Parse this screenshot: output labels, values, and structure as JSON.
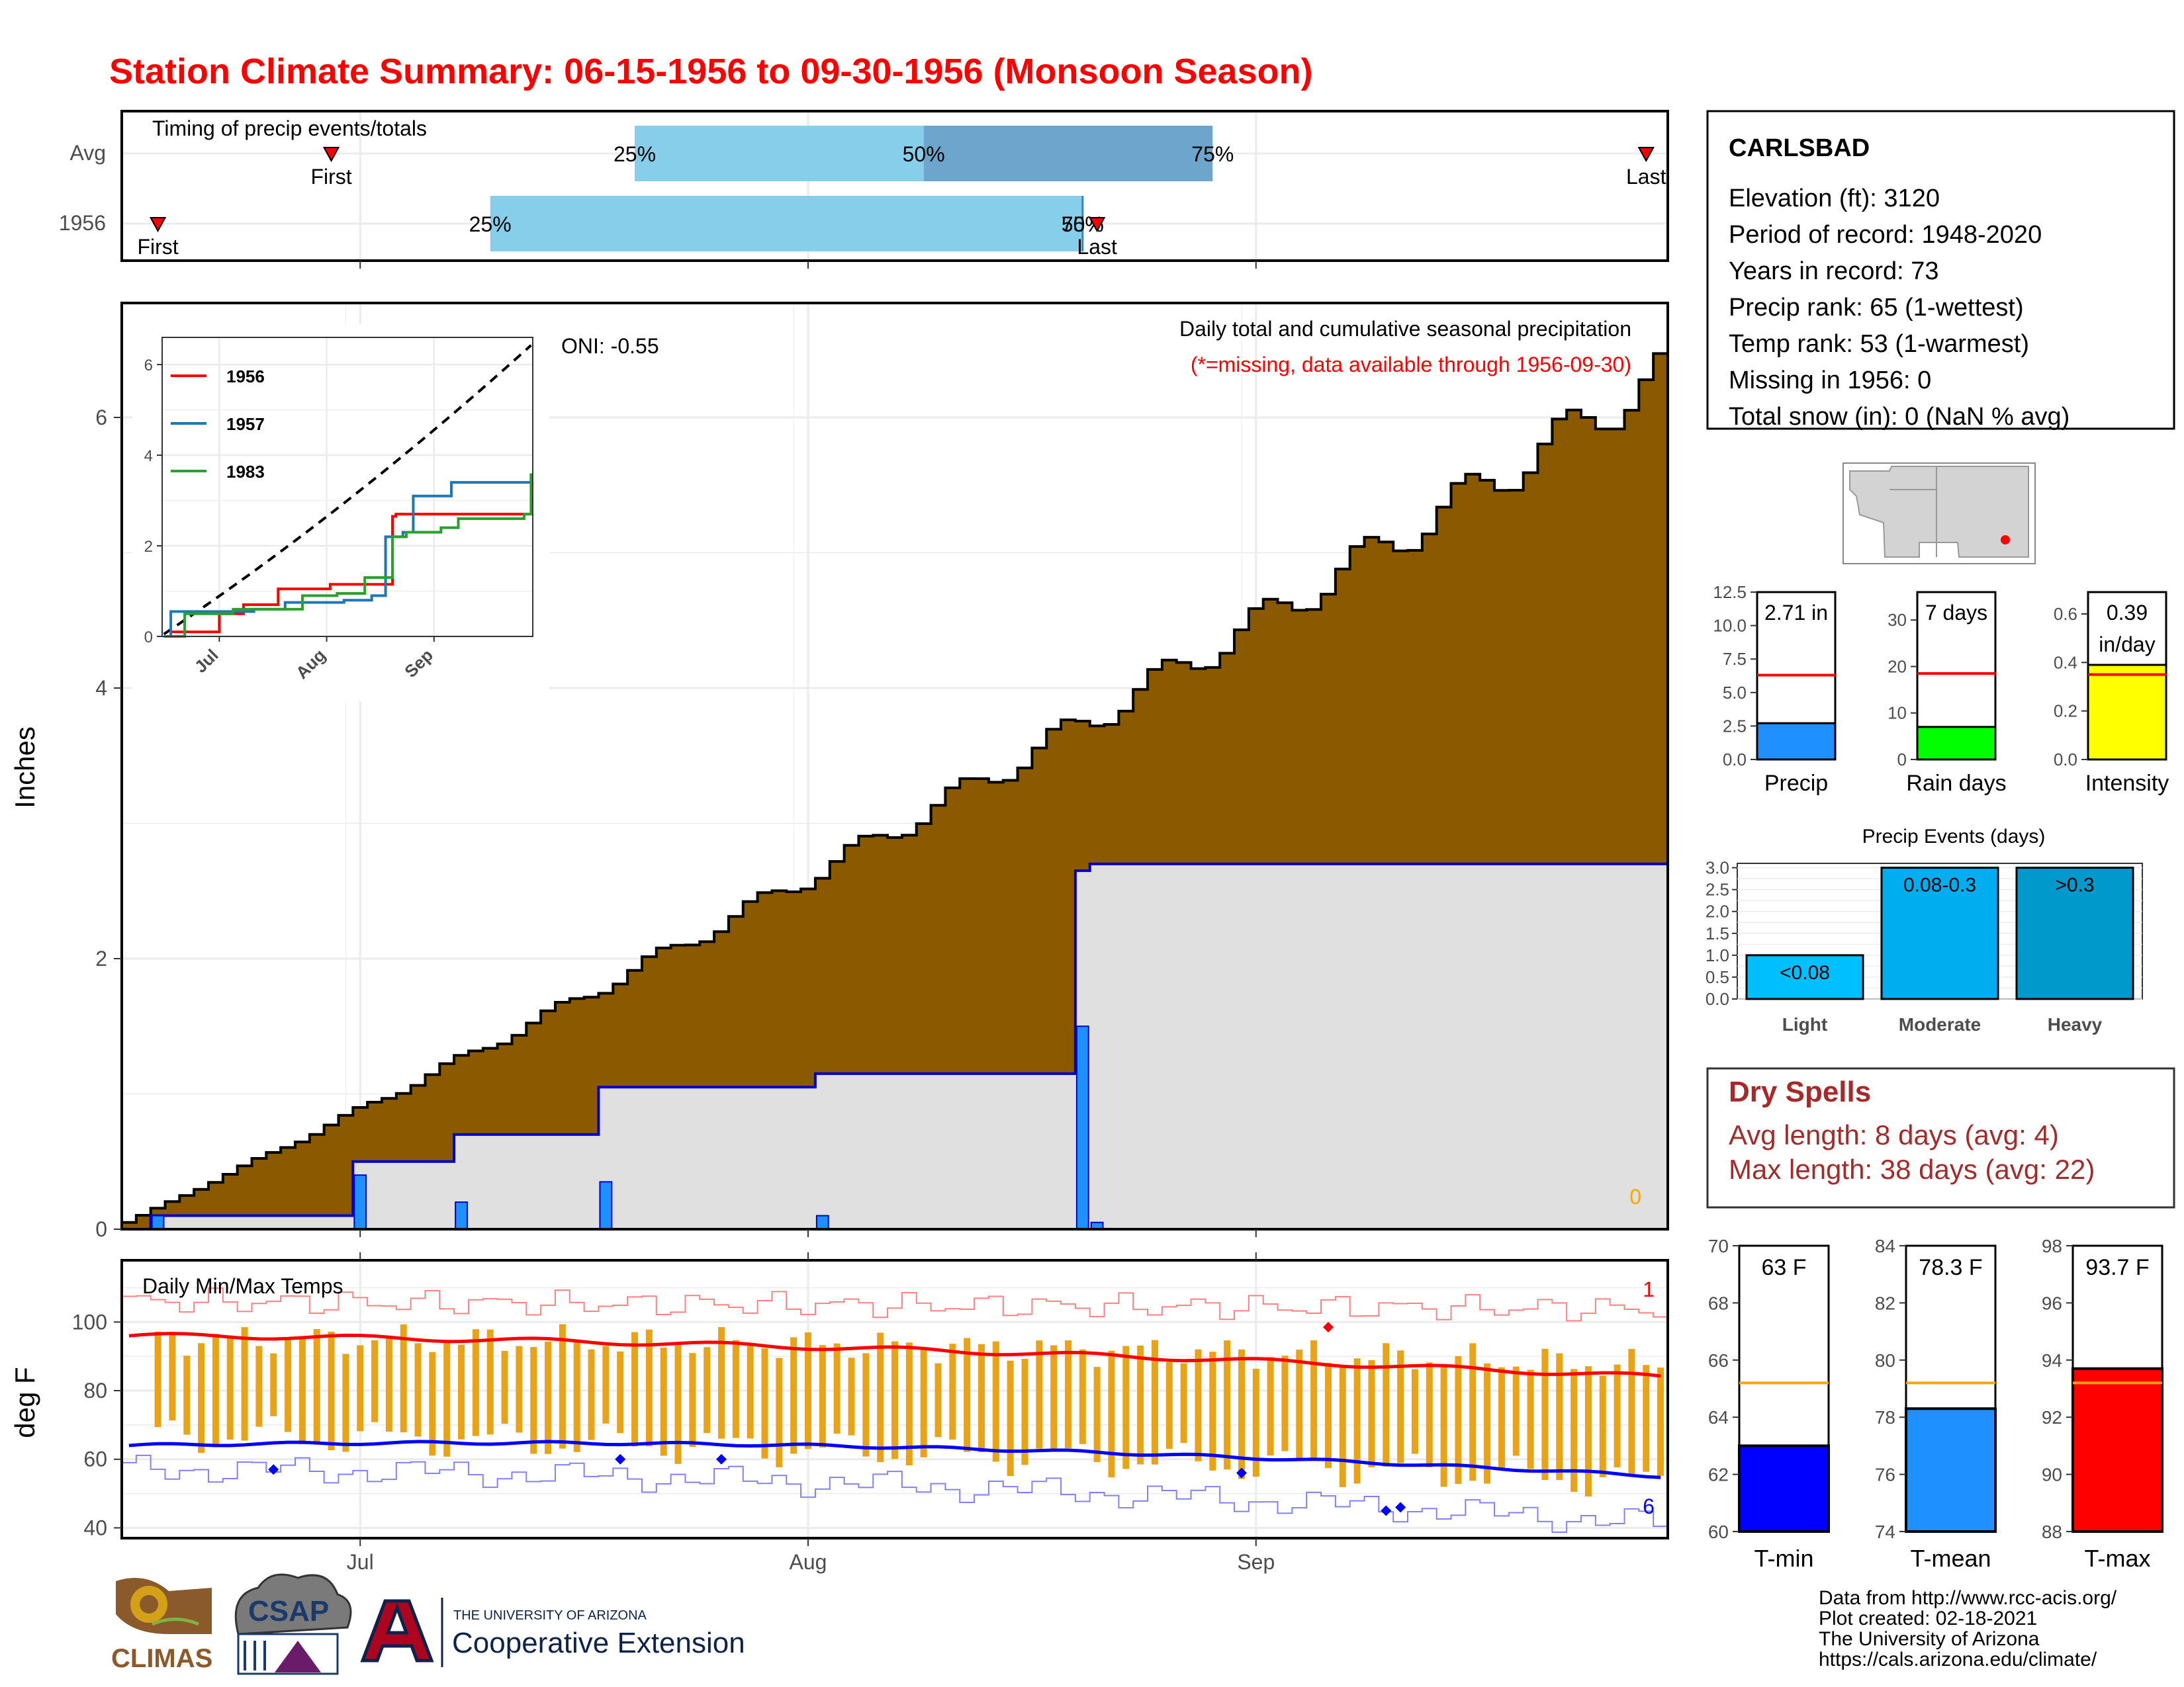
{
  "title": "Station Climate Summary: 06-15-1956 to 09-30-1956 (Monsoon Season)",
  "colors": {
    "title": "#ff0000",
    "precip_cum": "#8B5A00",
    "precip_bar": "#1E90FF",
    "precip_line": "#0000CC",
    "avg_light": "#87CEEB",
    "avg_dark": "#6CA6CD",
    "temp_bar": "#E8A317",
    "tmax_line": "#FF0000",
    "tmin_line": "#0000FF",
    "panel_border": "#000000",
    "grid": "#E6E6E6",
    "dry_spells": "#A52A2A",
    "orange": "#FFA500"
  },
  "timing_panel": {
    "title": "Timing of precip events/totals",
    "rows": [
      {
        "label": "Avg",
        "first": "First",
        "last": "Last",
        "first_date": "1956-06-29",
        "last_date": "1956-09-28",
        "q25_date": "1956-07-20",
        "q50_date": "1956-08-09",
        "q75_date": "1956-08-29",
        "q25": "25%",
        "q50": "50%",
        "q75": "75%"
      },
      {
        "label": "1956",
        "first": "First",
        "last": "Last",
        "first_date": "1956-06-17",
        "last_date": "1956-08-21",
        "q25_date": "1956-07-10",
        "q50_date": "1956-08-20",
        "q75_date": "1956-08-20",
        "q25": "25%",
        "q50": "50%",
        "q75": "75%"
      }
    ]
  },
  "precip_panel": {
    "ylabel": "Inches",
    "note1": "Daily total and cumulative seasonal precipitation",
    "note2": "(*=missing, data available through 1956-09-30)",
    "oni": "ONI: -0.55",
    "missing_count": "0",
    "x_ticks": [
      "Jul",
      "Aug",
      "Sep"
    ],
    "y_ticks": [
      "0",
      "2",
      "4",
      "6"
    ],
    "inset": {
      "series": [
        {
          "name": "1956",
          "color": "#ff0000"
        },
        {
          "name": "1957",
          "color": "#1f77b4"
        },
        {
          "name": "1983",
          "color": "#2ca02c"
        }
      ],
      "y_ticks": [
        "0",
        "2",
        "4",
        "6"
      ],
      "x_ticks": [
        "Jul",
        "Aug",
        "Sep"
      ]
    }
  },
  "temp_panel": {
    "title": "Daily Min/Max Temps",
    "ylabel": "deg F",
    "y_ticks": [
      "40",
      "60",
      "80",
      "100"
    ],
    "x_ticks": [
      "Jul",
      "Aug",
      "Sep"
    ],
    "record_high_count": "1",
    "record_low_count": "6"
  },
  "station": {
    "name": "CARLSBAD",
    "lines": [
      "Elevation (ft): 3120",
      "Period of record: 1948-2020",
      "Years in record: 73",
      "Precip rank: 65 (1-wettest)",
      "Temp rank: 53 (1-warmest)",
      "Missing in 1956: 0",
      "Total snow (in): 0 (NaN % avg)"
    ]
  },
  "summary_bars": [
    {
      "label": "Precip",
      "value_text": "2.71 in",
      "value": 2.71,
      "avg": 6.3,
      "ymax": 12.5,
      "ticks": [
        "0.0",
        "2.5",
        "5.0",
        "7.5",
        "10.0",
        "12.5"
      ],
      "color": "#1E90FF"
    },
    {
      "label": "Rain days",
      "value_text": "7 days",
      "value": 7,
      "avg": 18.5,
      "ymax": 36,
      "ticks": [
        "0",
        "10",
        "20",
        "30"
      ],
      "color": "#00FF00"
    },
    {
      "label": "Intensity",
      "value_text": "0.39",
      "value_text2": "in/day",
      "value": 0.39,
      "avg": 0.35,
      "ymax": 0.69,
      "ticks": [
        "0.0",
        "0.2",
        "0.4",
        "0.6"
      ],
      "color": "#FFFF00"
    }
  ],
  "precip_events": {
    "title": "Precip Events (days)",
    "ticks": [
      "0.0",
      "0.5",
      "1.0",
      "1.5",
      "2.0",
      "2.5",
      "3.0"
    ],
    "bars": [
      {
        "category": "Light",
        "label": "<0.08",
        "value": 1,
        "color": "#00BFFF"
      },
      {
        "category": "Moderate",
        "label": "0.08-0.3",
        "value": 3,
        "color": "#00AEEF"
      },
      {
        "category": "Heavy",
        "label": ">0.3",
        "value": 3,
        "color": "#0099CC"
      }
    ]
  },
  "dry_spells": {
    "title": "Dry Spells",
    "avg": "Avg length: 8 days (avg: 4)",
    "max": "Max length: 38 days (avg: 22)"
  },
  "temp_summary": [
    {
      "label": "T-min",
      "value_text": "63 F",
      "value": 63,
      "avg": 65.2,
      "ymin": 60,
      "ymax": 70,
      "ticks": [
        "60",
        "62",
        "64",
        "66",
        "68",
        "70"
      ],
      "color": "#0000FF"
    },
    {
      "label": "T-mean",
      "value_text": "78.3 F",
      "value": 78.3,
      "avg": 79.2,
      "ymin": 74,
      "ymax": 84,
      "ticks": [
        "74",
        "76",
        "78",
        "80",
        "82",
        "84"
      ],
      "color": "#1E90FF"
    },
    {
      "label": "T-max",
      "value_text": "93.7 F",
      "value": 93.7,
      "avg": 93.2,
      "ymin": 88,
      "ymax": 98,
      "ticks": [
        "88",
        "90",
        "92",
        "94",
        "96",
        "98"
      ],
      "color": "#FF0000"
    }
  ],
  "footer": {
    "lines": [
      "Data from http://www.rcc-acis.org/",
      "Plot created: 02-18-2021",
      "The University of Arizona",
      "https://cals.arizona.edu/climate/"
    ],
    "logo_climas": "CLIMAS",
    "logo_csap": "CSAP",
    "ua_small": "THE UNIVERSITY OF ARIZONA",
    "ua_big": "Cooperative Extension"
  },
  "chart_data": [
    {
      "type": "area",
      "title": "Daily total and cumulative seasonal precipitation",
      "ylabel": "Inches",
      "ylim": [
        0,
        6.9
      ],
      "x_range": [
        "1956-06-15",
        "1956-09-30"
      ],
      "avg_cumulative_final": 6.3,
      "year_cumulative_final": 2.71,
      "daily_precip": [
        {
          "date": "1956-06-17",
          "value": 0.1
        },
        {
          "date": "1956-07-01",
          "value": 0.4
        },
        {
          "date": "1956-07-08",
          "value": 0.2
        },
        {
          "date": "1956-07-18",
          "value": 0.35
        },
        {
          "date": "1956-08-02",
          "value": 0.1
        },
        {
          "date": "1956-08-20",
          "value": 1.5
        },
        {
          "date": "1956-08-21",
          "value": 0.05
        }
      ]
    },
    {
      "type": "line",
      "title": "Daily Min/Max Temps",
      "ylabel": "deg F",
      "ylim": [
        37,
        118
      ],
      "series": [
        {
          "name": "tmax_avg",
          "start": 96,
          "end": 84
        },
        {
          "name": "tmin_avg",
          "start": 64,
          "end": 55
        }
      ]
    }
  ]
}
